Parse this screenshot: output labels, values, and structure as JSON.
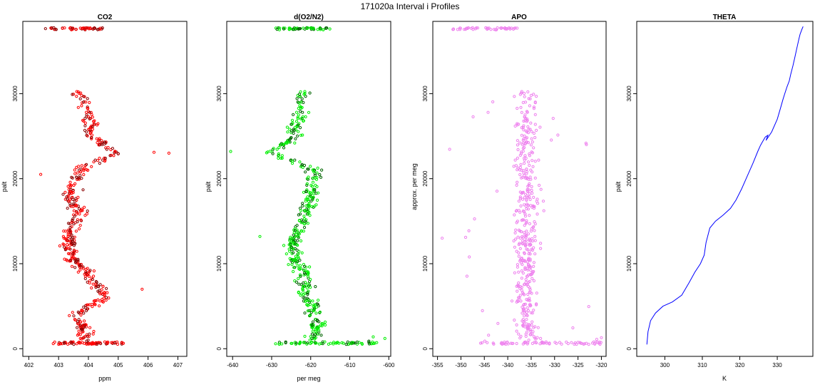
{
  "page": {
    "title": "171020a   Interval i Profiles"
  },
  "colors": {
    "co2": "#ff0000",
    "o2n2": "#00ee00",
    "apo": "#ee82ee",
    "theta": "#0000ff",
    "axis": "#000000"
  },
  "chart_data": [
    {
      "type": "scatter",
      "title": "CO2",
      "xlabel": "ppm",
      "ylabel": "palt",
      "xlim": [
        401.8,
        407.3
      ],
      "ylim": [
        -900,
        38500
      ],
      "xticks": [
        402,
        403,
        404,
        405,
        406,
        407
      ],
      "yticks": [
        0,
        10000,
        20000,
        30000
      ],
      "series": [
        {
          "x": [],
          "y": []
        }
      ]
    },
    {
      "type": "scatter",
      "title": "d(O2/N2)",
      "xlabel": "per meg",
      "ylabel": "palt",
      "xlim": [
        -641.5,
        -599.5
      ],
      "ylim": [
        -900,
        38500
      ],
      "xticks": [
        -640,
        -630,
        -620,
        -610,
        -600
      ],
      "yticks": [
        0,
        10000,
        20000,
        30000
      ],
      "series": [
        {
          "x": [],
          "y": []
        }
      ]
    },
    {
      "type": "scatter",
      "title": "APO",
      "xlabel": "",
      "ylabel": "approx. per meg",
      "xlim": [
        -356,
        -319
      ],
      "ylim": [
        -900,
        38500
      ],
      "xticks": [
        -355,
        -350,
        -345,
        -340,
        -335,
        -330,
        -325,
        -320
      ],
      "yticks": [
        0,
        10000,
        20000,
        30000
      ],
      "series": [
        {
          "x": [],
          "y": []
        }
      ]
    },
    {
      "type": "line",
      "title": "THETA",
      "xlabel": "K",
      "ylabel": "palt",
      "xlim": [
        292.5,
        339.5
      ],
      "ylim": [
        -900,
        38500
      ],
      "xticks": [
        300,
        310,
        320,
        330
      ],
      "yticks": [
        0,
        10000,
        20000,
        30000
      ],
      "series": [
        {
          "x": [
            295.2,
            295.5,
            296.2,
            297.5,
            299.5,
            302.0,
            304.5,
            306.5,
            308.0,
            309.5,
            310.5,
            311.0,
            312.0,
            313.5,
            315.5,
            317.5,
            319.0,
            320.5,
            322.0,
            323.5,
            324.8,
            325.5,
            326.0,
            326.8,
            327.5,
            327.0,
            328.5,
            330.0,
            331.0,
            331.5,
            332.0,
            332.6,
            333.2,
            333.6,
            334.2,
            334.7,
            335.2,
            335.8,
            336.1,
            336.6,
            336.9
          ],
          "y": [
            500,
            2000,
            3300,
            4200,
            5000,
            5500,
            6300,
            7800,
            9000,
            10000,
            11000,
            12500,
            14200,
            15000,
            15700,
            16500,
            17500,
            18800,
            20300,
            21800,
            23200,
            23900,
            24300,
            24900,
            25100,
            24500,
            25500,
            27000,
            28500,
            29300,
            30000,
            30800,
            31500,
            32300,
            33300,
            34300,
            35300,
            36500,
            37000,
            37600,
            37900
          ]
        }
      ]
    }
  ]
}
